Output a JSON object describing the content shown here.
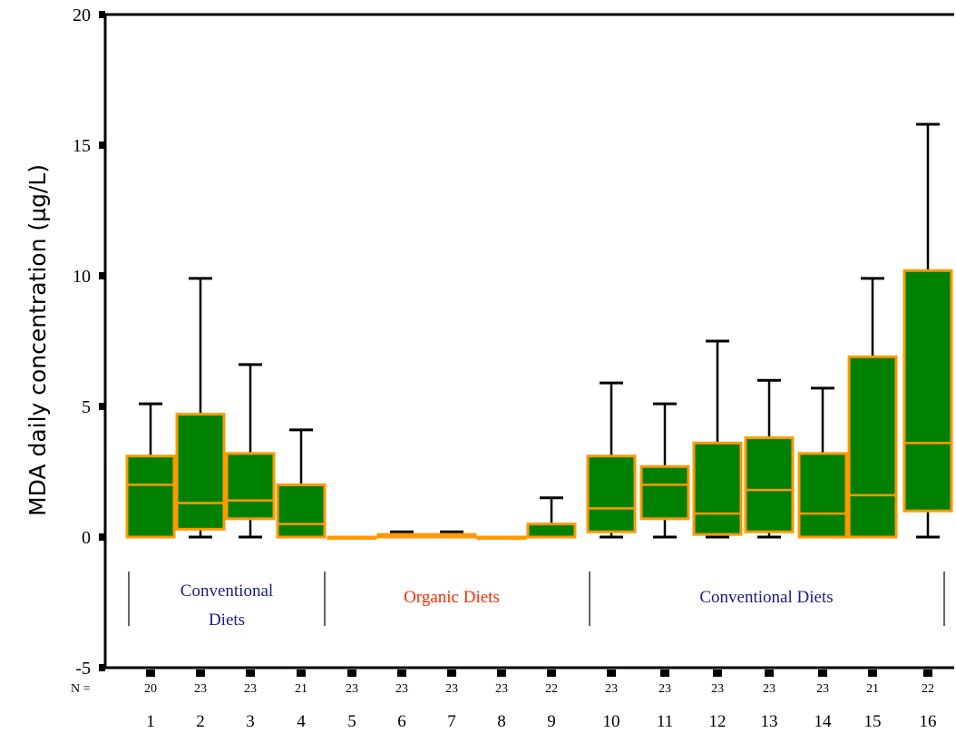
{
  "chart_data": {
    "type": "box",
    "ylabel": "MDA daily concentration (µg/L)",
    "xlabel": "",
    "ylim": [
      -5,
      20
    ],
    "y_ticks": [
      -5,
      0,
      5,
      10,
      15,
      20
    ],
    "n_label": "N =",
    "categories": [
      "1",
      "2",
      "3",
      "4",
      "5",
      "6",
      "7",
      "8",
      "9",
      "10",
      "11",
      "12",
      "13",
      "14",
      "15",
      "16"
    ],
    "n": [
      20,
      23,
      23,
      21,
      23,
      23,
      23,
      23,
      22,
      23,
      23,
      23,
      23,
      23,
      21,
      22
    ],
    "boxes": [
      {
        "min": 0,
        "q1": 0,
        "median": 2.0,
        "q3": 3.1,
        "max": 5.1
      },
      {
        "min": 0,
        "q1": 0.3,
        "median": 1.3,
        "q3": 4.7,
        "max": 9.9
      },
      {
        "min": 0,
        "q1": 0.7,
        "median": 1.4,
        "q3": 3.2,
        "max": 6.6
      },
      {
        "min": 0,
        "q1": 0,
        "median": 0.5,
        "q3": 2.0,
        "max": 4.1
      },
      {
        "min": 0,
        "q1": 0,
        "median": 0,
        "q3": 0,
        "max": 0
      },
      {
        "min": 0,
        "q1": 0,
        "median": 0,
        "q3": 0.1,
        "max": 0.2
      },
      {
        "min": 0,
        "q1": 0,
        "median": 0,
        "q3": 0.1,
        "max": 0.2
      },
      {
        "min": 0,
        "q1": 0,
        "median": 0,
        "q3": 0,
        "max": 0
      },
      {
        "min": 0,
        "q1": 0,
        "median": 0,
        "q3": 0.5,
        "max": 1.5
      },
      {
        "min": 0,
        "q1": 0.2,
        "median": 1.1,
        "q3": 3.1,
        "max": 5.9
      },
      {
        "min": 0,
        "q1": 0.7,
        "median": 2.0,
        "q3": 2.7,
        "max": 5.1
      },
      {
        "min": 0,
        "q1": 0.1,
        "median": 0.9,
        "q3": 3.6,
        "max": 7.5
      },
      {
        "min": 0,
        "q1": 0.2,
        "median": 1.8,
        "q3": 3.8,
        "max": 6.0
      },
      {
        "min": 0,
        "q1": 0,
        "median": 0.9,
        "q3": 3.2,
        "max": 5.7
      },
      {
        "min": 0,
        "q1": 0,
        "median": 1.6,
        "q3": 6.9,
        "max": 9.9
      },
      {
        "min": 0,
        "q1": 1.0,
        "median": 3.6,
        "q3": 10.2,
        "max": 15.8
      }
    ],
    "groups": [
      {
        "label_lines": [
          "Conventional",
          "Diets"
        ],
        "from": 1,
        "to": 4,
        "color": "#1c1c8c"
      },
      {
        "label_lines": [
          "Organic Diets"
        ],
        "from": 5,
        "to": 9,
        "color": "#ff2a00"
      },
      {
        "label_lines": [
          "Conventional Diets"
        ],
        "from": 10,
        "to": 16,
        "color": "#1c1c8c"
      }
    ],
    "colors": {
      "box_fill": "#008000",
      "box_edge": "#ff9900",
      "whisker": "#000000"
    },
    "grid": false
  }
}
